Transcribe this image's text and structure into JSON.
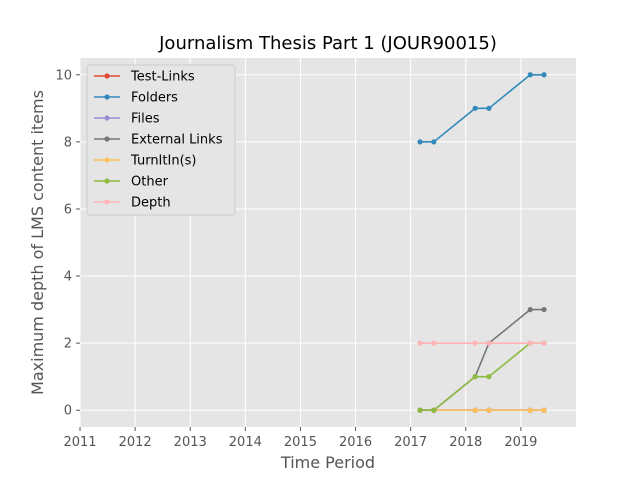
{
  "chart_data": {
    "type": "line",
    "title": "Journalism Thesis Part 1 (JOUR90015)",
    "xlabel": "Time Period",
    "ylabel": "Maximum depth of LMS content items",
    "xlim": [
      2011,
      2020
    ],
    "ylim": [
      -0.5,
      10.5
    ],
    "xticks": [
      "2011",
      "2012",
      "2013",
      "2014",
      "2015",
      "2016",
      "2017",
      "2018",
      "2019"
    ],
    "yticks": [
      "0",
      "2",
      "4",
      "6",
      "8",
      "10"
    ],
    "grid": true,
    "legend_position": "top-left",
    "x": [
      2017.17,
      2017.42,
      2018.17,
      2018.42,
      2019.17,
      2019.42
    ],
    "series": [
      {
        "name": "Test-Links",
        "color": "#E24A33",
        "values": [
          0,
          0,
          0,
          0,
          0,
          0
        ]
      },
      {
        "name": "Folders",
        "color": "#348ABD",
        "values": [
          8,
          8,
          9,
          9,
          10,
          10
        ]
      },
      {
        "name": "Files",
        "color": "#988ED5",
        "values": [
          0,
          0,
          0,
          0,
          0,
          0
        ]
      },
      {
        "name": "External Links",
        "color": "#777777",
        "values": [
          0,
          0,
          1,
          2,
          3,
          3
        ]
      },
      {
        "name": "TurnItIn(s)",
        "color": "#FBC15E",
        "values": [
          0,
          0,
          0,
          0,
          0,
          0
        ]
      },
      {
        "name": "Other",
        "color": "#8EBA42",
        "values": [
          0,
          0,
          1,
          1,
          2,
          2
        ]
      },
      {
        "name": "Depth",
        "color": "#FFB5B8",
        "values": [
          2,
          2,
          2,
          2,
          2,
          2
        ]
      }
    ]
  }
}
